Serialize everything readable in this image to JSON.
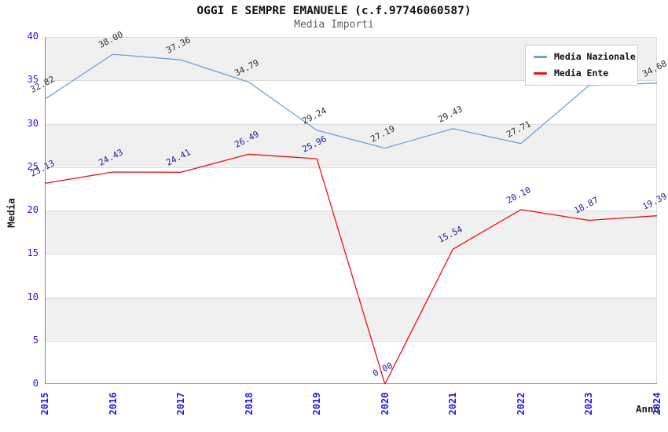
{
  "title": "OGGI E SEMPRE EMANUELE (c.f.97746060587)",
  "subtitle": "Media Importi",
  "axes": {
    "y_label": "Media",
    "x_label": "Anno",
    "y_ticks": [
      0,
      5,
      10,
      15,
      20,
      25,
      30,
      35,
      40
    ],
    "tick_color": "#1a1ae6"
  },
  "legend": {
    "items": [
      {
        "label": "Media Nazionale",
        "color": "#6CA0E0"
      },
      {
        "label": "Media Ente",
        "color": "#EE1111"
      }
    ]
  },
  "chart_data": {
    "type": "line",
    "title": "OGGI E SEMPRE EMANUELE (c.f.97746060587)",
    "subtitle": "Media Importi",
    "xlabel": "Anno",
    "ylabel": "Media",
    "x": [
      "2015",
      "2016",
      "2017",
      "2018",
      "2019",
      "2020",
      "2021",
      "2022",
      "2023",
      "2024"
    ],
    "ylim": [
      0,
      40
    ],
    "grid": "horizontal-bands",
    "legend_position": "top-right",
    "band_colors": [
      "#ffffff",
      "#f0f0f0"
    ],
    "gridline_color": "#dcdcdc",
    "spine_color": "#8a8a8a",
    "series": [
      {
        "name": "Media Nazionale",
        "color": "#6CA0E0",
        "label_color": "#303030",
        "values": [
          32.82,
          38.0,
          37.36,
          34.79,
          29.24,
          27.19,
          29.43,
          27.71,
          34.4,
          34.68
        ],
        "labels": [
          "32.82",
          "38.00",
          "37.36",
          "34.79",
          "29.24",
          "27.19",
          "29.43",
          "27.71",
          "34.40",
          "34.68"
        ]
      },
      {
        "name": "Media Ente",
        "color": "#EE1111",
        "label_color": "#22229a",
        "values": [
          23.13,
          24.43,
          24.41,
          26.49,
          25.96,
          0.0,
          15.54,
          20.1,
          18.87,
          19.39
        ],
        "labels": [
          "23.13",
          "24.43",
          "24.41",
          "26.49",
          "25.96",
          "0.00",
          "15.54",
          "20.10",
          "18.87",
          "19.39"
        ]
      }
    ]
  }
}
